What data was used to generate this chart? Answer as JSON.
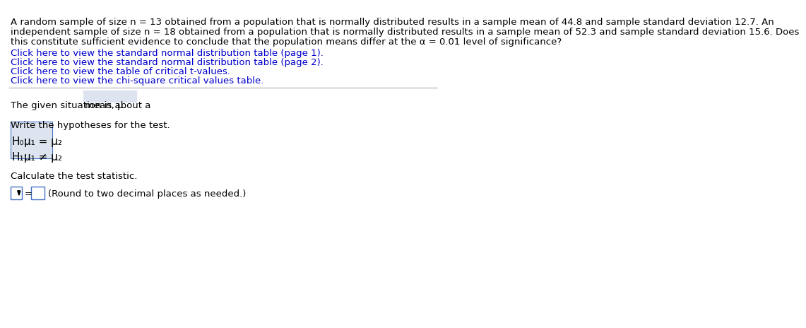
{
  "background_color": "#ffffff",
  "paragraph_text": "A random sample of size n = 13 obtained from a population that is normally distributed results in a sample mean of 44.8 and sample standard deviation 12.7. An\nindependent sample of size n = 18 obtained from a population that is normally distributed results in a sample mean of 52.3 and sample standard deviation 15.6. Does\nthis constitute sufficient evidence to conclude that the population means differ at the α = 0.01 level of significance?",
  "links": [
    "Click here to view the standard normal distribution table (page 1).",
    "Click here to view the standard normal distribution table (page 2).",
    "Click here to view the table of critical t-values.",
    "Click here to view the chi-square critical values table."
  ],
  "situation_label": "The given situation is about a ",
  "situation_value": "mean, μ.",
  "hypotheses_label": "Write the hypotheses for the test.",
  "h0_label": "H₀:",
  "h0_value": "μ₁ = μ₂",
  "h1_label": "H₁:",
  "h1_value": "μ₁ ≠ μ₂",
  "calc_label": "Calculate the test statistic.",
  "round_note": "(Round to two decimal places as needed.)",
  "link_color": "#0000cc",
  "text_color": "#000000",
  "box_fill_color": "#dde4ef",
  "box_border_color": "#4472c4",
  "font_size_main": 9.5,
  "font_size_hyp": 11,
  "font_size_links": 9.5
}
